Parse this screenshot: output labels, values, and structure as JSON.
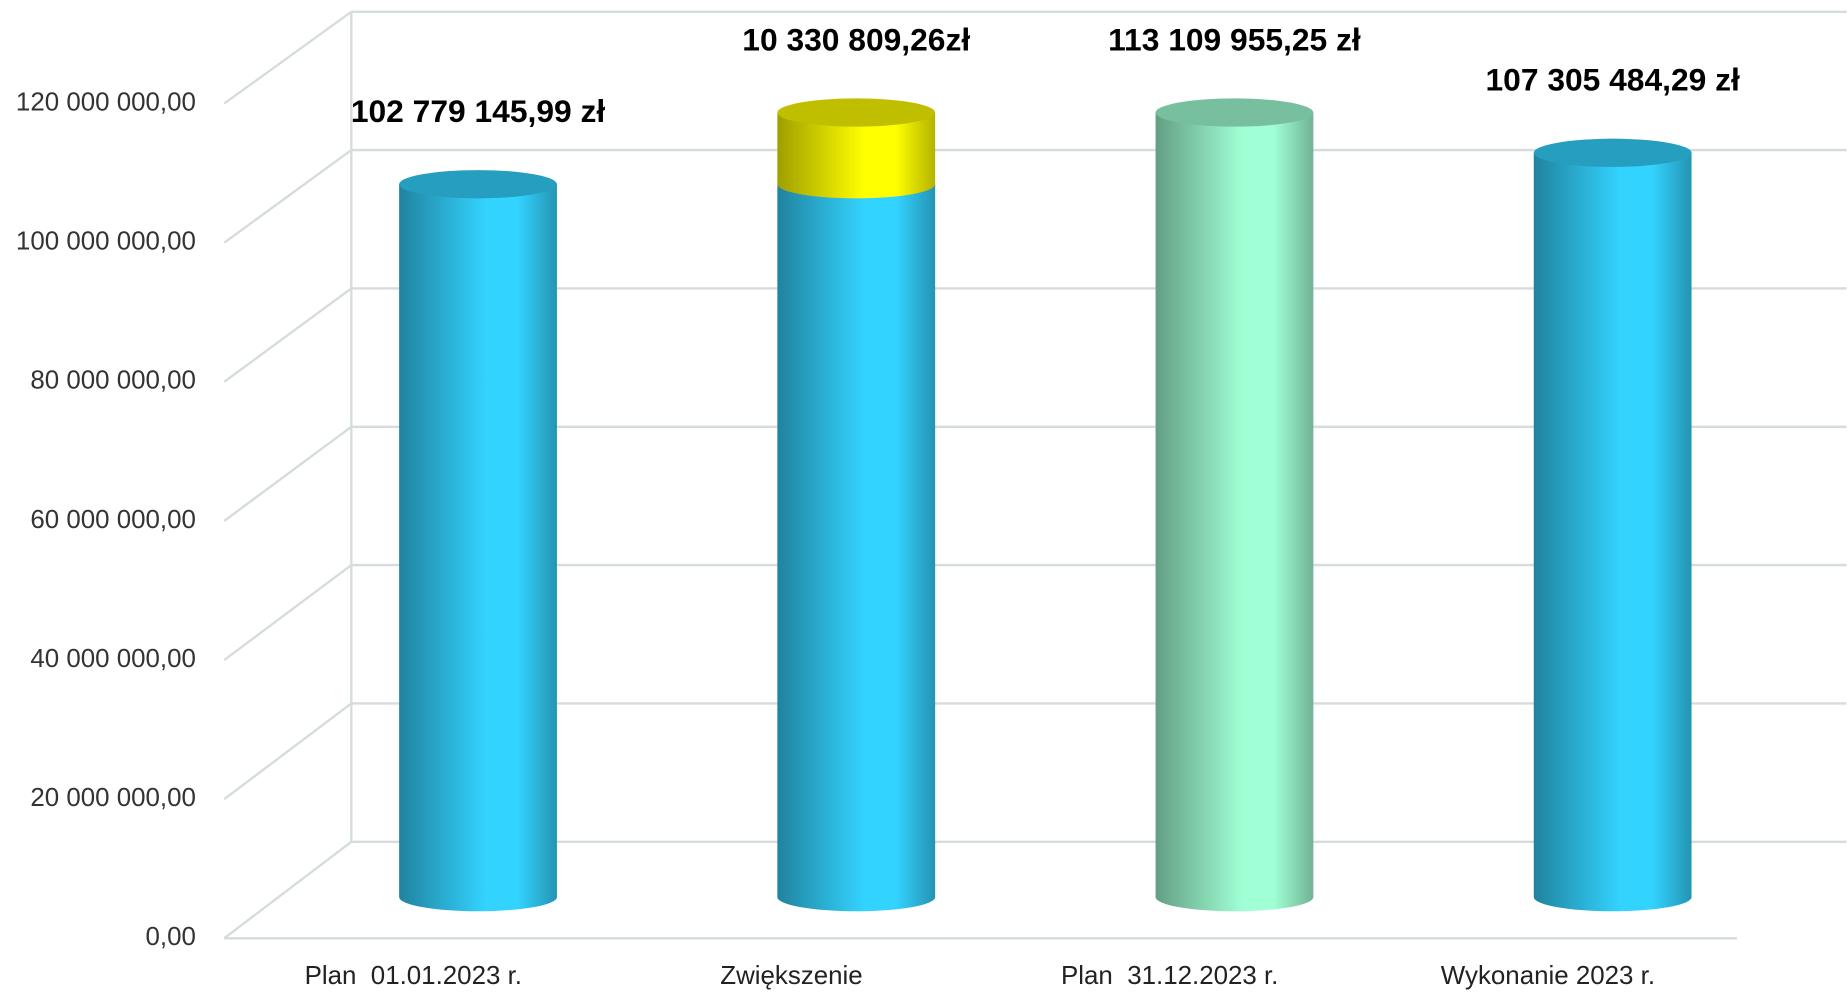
{
  "chart_data": {
    "type": "cylinder",
    "categories": [
      "Plan  01.01.2023 r.",
      "Zwiększenie",
      "Plan  31.12.2023 r.",
      "Wykonanie 2023 r."
    ],
    "stacked": true,
    "series": [
      {
        "color": "#33d3ff",
        "values": [
          102779145.99,
          102779145.99,
          null,
          107305484.29
        ],
        "value_labels": [
          "102 779 145,99 zł",
          null,
          null,
          "107 305 484,29 zł"
        ]
      },
      {
        "color": "#ffff00",
        "values": [
          null,
          10330809.26,
          null,
          null
        ],
        "value_labels": [
          null,
          "10 330 809,26zł",
          null,
          null
        ]
      },
      {
        "color": "#a0ffd4",
        "values": [
          null,
          null,
          113109955.25,
          null
        ],
        "value_labels": [
          null,
          null,
          "113 109 955,25 zł",
          null
        ]
      }
    ],
    "ylim": [
      0,
      120000000
    ],
    "yticks": [
      {
        "value": 0,
        "label": "0,00"
      },
      {
        "value": 20000000,
        "label": "20 000 000,00"
      },
      {
        "value": 40000000,
        "label": "40 000 000,00"
      },
      {
        "value": 60000000,
        "label": "60 000 000,00"
      },
      {
        "value": 80000000,
        "label": "80 000 000,00"
      },
      {
        "value": 100000000,
        "label": "100 000 000,00"
      },
      {
        "value": 120000000,
        "label": "120 000 000,00"
      }
    ],
    "grid": true
  }
}
